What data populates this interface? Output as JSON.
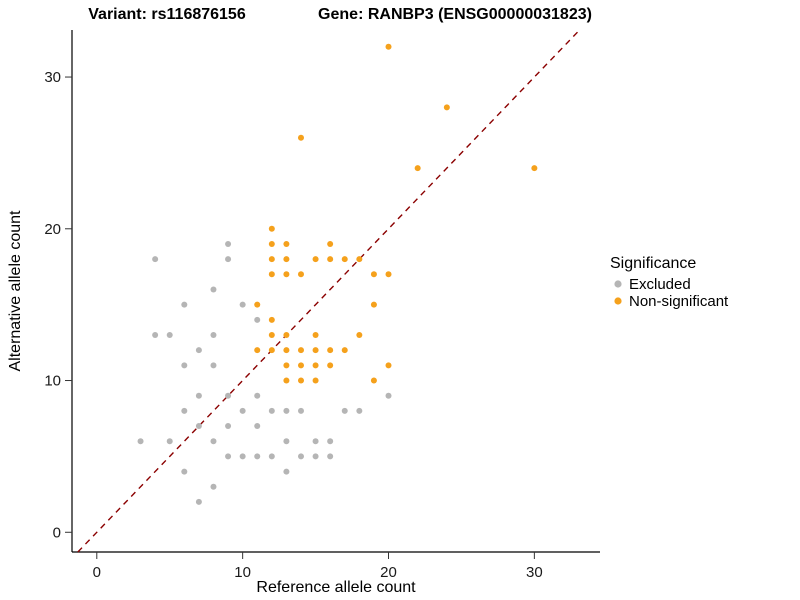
{
  "header": {
    "title_left": "Variant: rs116876156",
    "title_right": "Gene: RANBP3 (ENSG00000031823)"
  },
  "chart_data": {
    "type": "scatter",
    "title_left": "Variant: rs116876156",
    "title_right": "Gene: RANBP3 (ENSG00000031823)",
    "xlabel": "Reference allele count",
    "ylabel": "Alternative allele count",
    "xlim": [
      -1.7,
      34.5
    ],
    "ylim": [
      -1.3,
      33.1
    ],
    "xticks": [
      0,
      10,
      20,
      30
    ],
    "yticks": [
      0,
      10,
      20,
      30
    ],
    "grid": false,
    "reference_line": {
      "type": "identity y=x",
      "style": "dashed",
      "color": "#8b0000"
    },
    "legend": {
      "title": "Significance",
      "position": "right",
      "entries": [
        {
          "label": "Excluded",
          "color": "#b5b5b5"
        },
        {
          "label": "Non-significant",
          "color": "#f5a11c"
        }
      ]
    },
    "series": [
      {
        "name": "Excluded",
        "color": "#b5b5b5",
        "points": [
          [
            3,
            6
          ],
          [
            4,
            13
          ],
          [
            4,
            18
          ],
          [
            5,
            6
          ],
          [
            5,
            13
          ],
          [
            6,
            4
          ],
          [
            6,
            8
          ],
          [
            6,
            11
          ],
          [
            6,
            15
          ],
          [
            7,
            2
          ],
          [
            7,
            7
          ],
          [
            7,
            9
          ],
          [
            7,
            12
          ],
          [
            8,
            3
          ],
          [
            8,
            6
          ],
          [
            8,
            11
          ],
          [
            8,
            13
          ],
          [
            8,
            16
          ],
          [
            9,
            5
          ],
          [
            9,
            7
          ],
          [
            9,
            9
          ],
          [
            9,
            18
          ],
          [
            9,
            19
          ],
          [
            10,
            5
          ],
          [
            10,
            8
          ],
          [
            10,
            15
          ],
          [
            11,
            5
          ],
          [
            11,
            7
          ],
          [
            11,
            9
          ],
          [
            11,
            14
          ],
          [
            12,
            5
          ],
          [
            12,
            8
          ],
          [
            13,
            4
          ],
          [
            13,
            6
          ],
          [
            13,
            8
          ],
          [
            14,
            5
          ],
          [
            14,
            8
          ],
          [
            15,
            5
          ],
          [
            15,
            6
          ],
          [
            16,
            5
          ],
          [
            16,
            6
          ],
          [
            17,
            8
          ],
          [
            18,
            8
          ],
          [
            20,
            9
          ]
        ]
      },
      {
        "name": "Non-significant",
        "color": "#f5a11c",
        "points": [
          [
            11,
            12
          ],
          [
            11,
            15
          ],
          [
            12,
            12
          ],
          [
            12,
            13
          ],
          [
            12,
            14
          ],
          [
            12,
            17
          ],
          [
            12,
            18
          ],
          [
            12,
            19
          ],
          [
            12,
            20
          ],
          [
            13,
            10
          ],
          [
            13,
            11
          ],
          [
            13,
            12
          ],
          [
            13,
            13
          ],
          [
            13,
            17
          ],
          [
            13,
            18
          ],
          [
            13,
            19
          ],
          [
            14,
            10
          ],
          [
            14,
            11
          ],
          [
            14,
            12
          ],
          [
            14,
            17
          ],
          [
            14,
            26
          ],
          [
            15,
            10
          ],
          [
            15,
            11
          ],
          [
            15,
            12
          ],
          [
            15,
            13
          ],
          [
            15,
            18
          ],
          [
            16,
            11
          ],
          [
            16,
            12
          ],
          [
            16,
            18
          ],
          [
            16,
            19
          ],
          [
            17,
            12
          ],
          [
            17,
            18
          ],
          [
            18,
            13
          ],
          [
            18,
            18
          ],
          [
            19,
            10
          ],
          [
            19,
            15
          ],
          [
            19,
            17
          ],
          [
            20,
            11
          ],
          [
            20,
            17
          ],
          [
            20,
            32
          ],
          [
            22,
            24
          ],
          [
            24,
            28
          ],
          [
            30,
            24
          ]
        ]
      }
    ]
  }
}
